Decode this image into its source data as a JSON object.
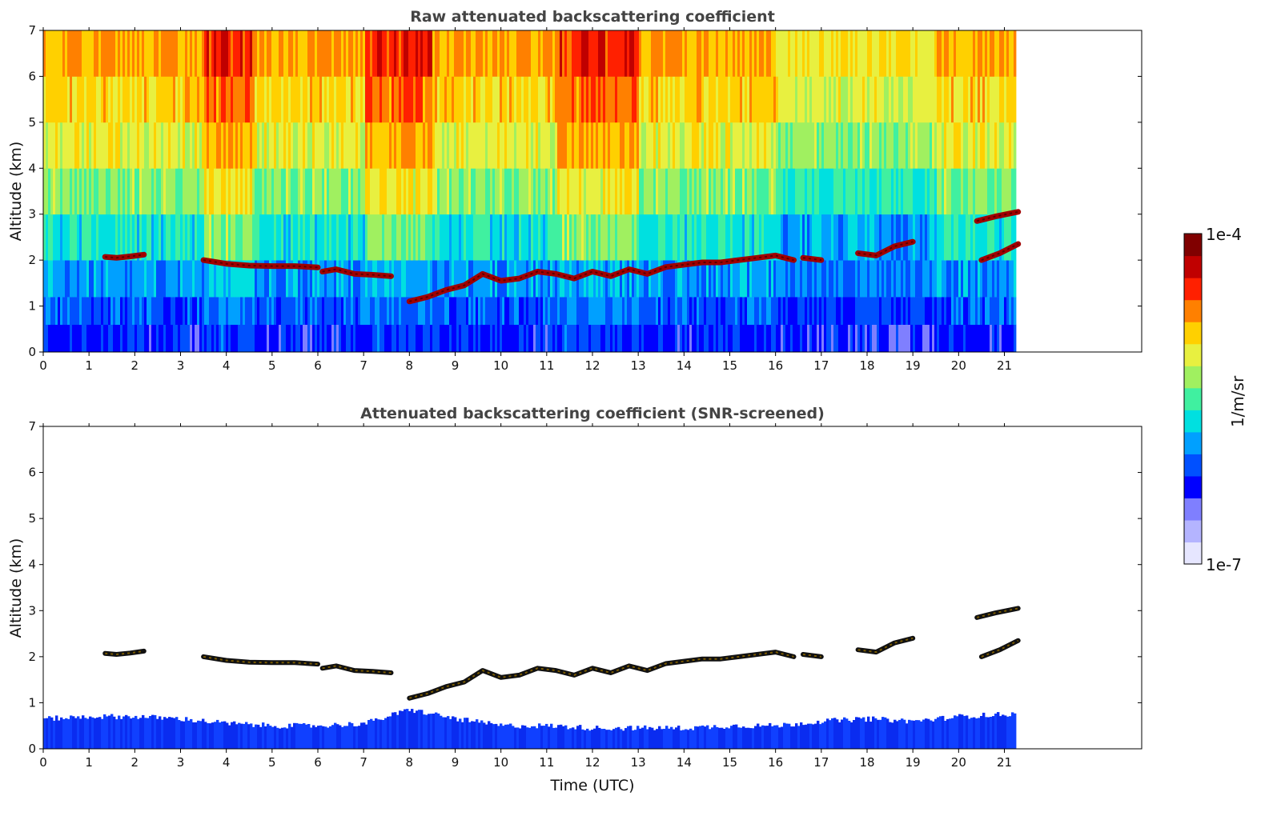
{
  "chart_data": [
    {
      "type": "heatmap",
      "title": "Raw attenuated backscattering coefficient",
      "xlabel": "",
      "ylabel": "Altitude (km)",
      "xlim": [
        0,
        24
      ],
      "ylim": [
        0,
        7
      ],
      "xticks": [
        0,
        1,
        2,
        3,
        4,
        5,
        6,
        7,
        8,
        9,
        10,
        11,
        12,
        13,
        14,
        15,
        16,
        17,
        18,
        19,
        20,
        21
      ],
      "yticks": [
        0,
        1,
        2,
        3,
        4,
        5,
        6,
        7
      ],
      "data_end_time": 21.3,
      "noise": "high-altitude noise shown (yellow/red speckle above ~2 km)",
      "layers": [
        {
          "x": [
            1.35,
            1.6,
            1.9,
            2.2
          ],
          "y": [
            2.07,
            2.05,
            2.08,
            2.12
          ]
        },
        {
          "x": [
            3.5,
            4.0,
            4.5,
            5.0,
            5.5,
            6.0
          ],
          "y": [
            2.0,
            1.92,
            1.88,
            1.87,
            1.87,
            1.84
          ]
        },
        {
          "x": [
            6.1,
            6.4,
            6.8,
            7.2,
            7.6
          ],
          "y": [
            1.75,
            1.8,
            1.7,
            1.68,
            1.65
          ]
        },
        {
          "x": [
            8.0,
            8.4,
            8.8,
            9.2,
            9.6,
            10.0,
            10.4,
            10.8,
            11.2,
            11.6,
            12.0,
            12.4,
            12.8,
            13.2,
            13.6,
            14.0,
            14.4,
            14.8,
            15.2,
            15.6,
            16.0,
            16.4
          ],
          "y": [
            1.1,
            1.2,
            1.35,
            1.45,
            1.7,
            1.55,
            1.6,
            1.75,
            1.7,
            1.6,
            1.75,
            1.65,
            1.8,
            1.7,
            1.85,
            1.9,
            1.95,
            1.95,
            2.0,
            2.05,
            2.1,
            2.0
          ]
        },
        {
          "x": [
            16.6,
            17.0
          ],
          "y": [
            2.05,
            2.0
          ]
        },
        {
          "x": [
            17.8,
            18.2,
            18.6,
            19.0
          ],
          "y": [
            2.15,
            2.1,
            2.3,
            2.4
          ]
        },
        {
          "x": [
            20.4,
            20.8,
            21.3
          ],
          "y": [
            2.85,
            2.95,
            3.05
          ]
        },
        {
          "x": [
            20.5,
            20.9,
            21.3
          ],
          "y": [
            2.0,
            2.15,
            2.35
          ]
        }
      ]
    },
    {
      "type": "heatmap",
      "title": "Attenuated backscattering coefficient (SNR-screened)",
      "xlabel": "Time (UTC)",
      "ylabel": "Altitude (km)",
      "xlim": [
        0,
        24
      ],
      "ylim": [
        0,
        7
      ],
      "xticks": [
        0,
        1,
        2,
        3,
        4,
        5,
        6,
        7,
        8,
        9,
        10,
        11,
        12,
        13,
        14,
        15,
        16,
        17,
        18,
        19,
        20,
        21
      ],
      "yticks": [
        0,
        1,
        2,
        3,
        4,
        5,
        6,
        7
      ],
      "data_end_time": 21.3,
      "noise": "screened (white above boundary layer)",
      "boundary_layer_top": {
        "x": [
          0,
          1,
          2,
          3,
          4,
          5,
          6,
          7,
          7.5,
          8,
          8.5,
          9,
          10,
          11,
          12,
          13,
          14,
          15,
          16,
          17,
          18,
          19,
          20,
          21,
          21.3
        ],
        "y": [
          0.65,
          0.7,
          0.7,
          0.65,
          0.55,
          0.5,
          0.5,
          0.55,
          0.7,
          0.85,
          0.75,
          0.65,
          0.5,
          0.5,
          0.45,
          0.45,
          0.45,
          0.5,
          0.5,
          0.6,
          0.65,
          0.6,
          0.7,
          0.75,
          0.75
        ]
      }
    }
  ],
  "colorbar": {
    "label": "1/m/sr",
    "max_label": "1e-4",
    "min_label": "1e-7",
    "scale": "log",
    "range": [
      1e-07,
      0.0001
    ],
    "colors": [
      "#e6e6ff",
      "#b4b4ff",
      "#7f7fff",
      "#0000ff",
      "#0050ff",
      "#00a0ff",
      "#00e0e0",
      "#40f0a0",
      "#a0f060",
      "#e8f040",
      "#ffd000",
      "#ff8000",
      "#ff2000",
      "#c00000",
      "#800000"
    ]
  }
}
